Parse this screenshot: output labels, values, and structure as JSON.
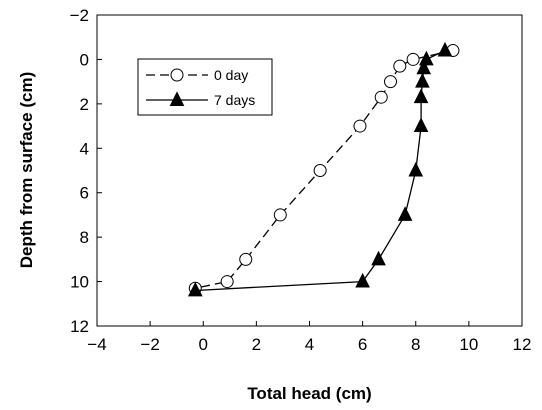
{
  "chart_data": {
    "type": "line",
    "xlabel": "Total head (cm)",
    "ylabel": "Depth from surface (cm)",
    "xlim": [
      -4,
      12
    ],
    "ylim": [
      -2,
      12
    ],
    "y_inverted": true,
    "x_ticks": [
      -4,
      -2,
      0,
      2,
      4,
      6,
      8,
      10,
      12
    ],
    "y_ticks": [
      -2,
      0,
      2,
      4,
      6,
      8,
      10,
      12
    ],
    "x_tick_labels": [
      "−4",
      "−2",
      "0",
      "2",
      "4",
      "6",
      "8",
      "10",
      "12"
    ],
    "y_tick_labels": [
      "−2",
      "0",
      "2",
      "4",
      "6",
      "8",
      "10",
      "12"
    ],
    "grid": false,
    "legend_position": "top-left inside",
    "series": [
      {
        "name": "0 day",
        "marker": "open-circle",
        "line_style": "dashed",
        "color": "#000000",
        "points": [
          {
            "x": 9.4,
            "y": -0.4
          },
          {
            "x": 7.9,
            "y": 0
          },
          {
            "x": 7.4,
            "y": 0.3
          },
          {
            "x": 7.05,
            "y": 1
          },
          {
            "x": 6.7,
            "y": 1.7
          },
          {
            "x": 5.9,
            "y": 3
          },
          {
            "x": 4.4,
            "y": 5
          },
          {
            "x": 2.9,
            "y": 7
          },
          {
            "x": 1.6,
            "y": 9
          },
          {
            "x": 0.9,
            "y": 10
          },
          {
            "x": -0.3,
            "y": 10.3
          }
        ]
      },
      {
        "name": "7 days",
        "marker": "filled-triangle",
        "line_style": "solid",
        "color": "#000000",
        "points": [
          {
            "x": 9.1,
            "y": -0.4
          },
          {
            "x": 8.4,
            "y": 0
          },
          {
            "x": 8.3,
            "y": 0.4
          },
          {
            "x": 8.25,
            "y": 1
          },
          {
            "x": 8.2,
            "y": 1.7
          },
          {
            "x": 8.2,
            "y": 3
          },
          {
            "x": 8.0,
            "y": 5
          },
          {
            "x": 7.6,
            "y": 7
          },
          {
            "x": 6.6,
            "y": 9
          },
          {
            "x": 6.0,
            "y": 10
          },
          {
            "x": -0.3,
            "y": 10.4
          }
        ]
      }
    ]
  }
}
